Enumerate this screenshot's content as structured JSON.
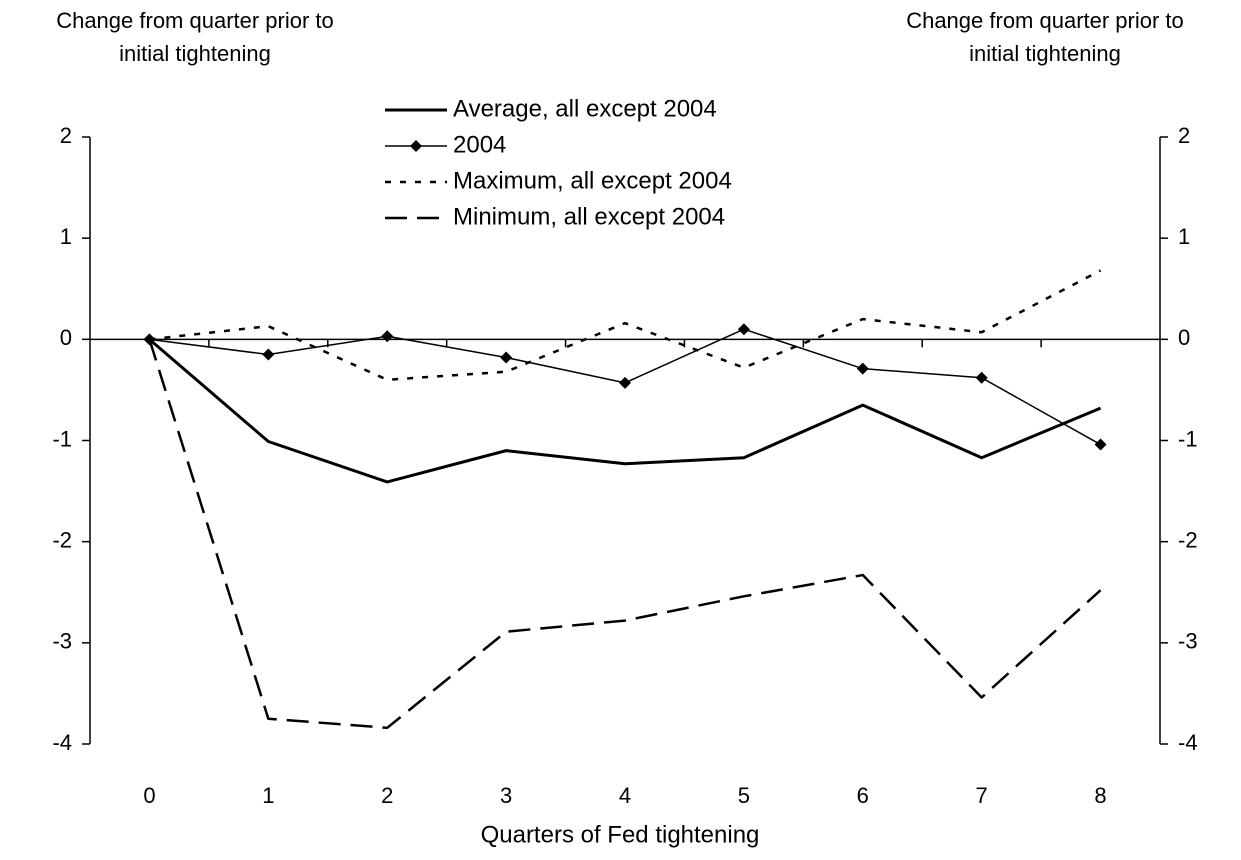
{
  "chart_data": {
    "type": "line",
    "y_label": [
      "Change from quarter prior to",
      "initial tightening"
    ],
    "y2_label": [
      "Change from quarter prior to",
      "initial tightening"
    ],
    "x_label": "Quarters of Fed tightening",
    "categories": [
      "0",
      "1",
      "2",
      "3",
      "4",
      "5",
      "6",
      "7",
      "8"
    ],
    "ylim": [
      -4,
      2
    ],
    "yticks": [
      -4,
      -3,
      -2,
      -1,
      0,
      1,
      2
    ],
    "y2lim": [
      -4,
      2
    ],
    "y2ticks": [
      -4,
      -3,
      -2,
      -1,
      0,
      1,
      2
    ],
    "legend": "top",
    "series": [
      {
        "name": "Average, all except 2004",
        "color": "#000000",
        "style": "solid",
        "width": 3,
        "values": [
          0,
          -1.01,
          -1.41,
          -1.1,
          -1.23,
          -1.17,
          -0.65,
          -1.17,
          -0.68
        ]
      },
      {
        "name": "2004",
        "color": "#000000",
        "style": "solid",
        "width": 1.5,
        "marker": "diamond",
        "values": [
          0,
          -0.15,
          0.03,
          -0.18,
          -0.43,
          0.1,
          -0.29,
          -0.38,
          -1.04
        ]
      },
      {
        "name": "Maximum, all except 2004",
        "color": "#000000",
        "style": "dotted",
        "width": 2.5,
        "values": [
          0,
          0.13,
          -0.4,
          -0.32,
          0.16,
          -0.28,
          0.2,
          0.07,
          0.68
        ]
      },
      {
        "name": "Minimum, all except 2004",
        "color": "#000000",
        "style": "dashed",
        "width": 2.5,
        "values": [
          0,
          -3.75,
          -3.84,
          -2.89,
          -2.78,
          -2.54,
          -2.33,
          -3.54,
          -2.48
        ]
      }
    ]
  }
}
